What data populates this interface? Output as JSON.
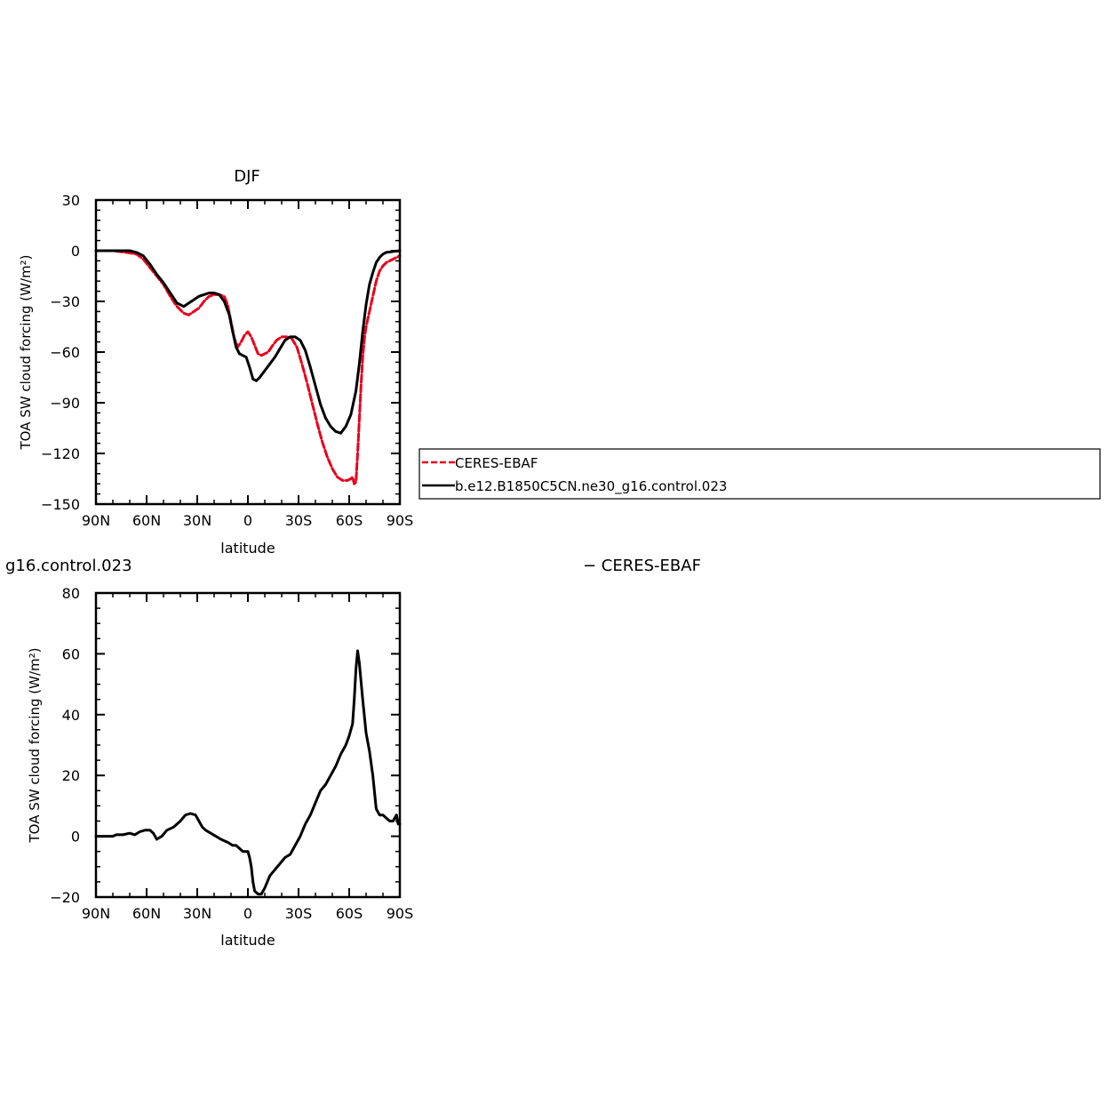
{
  "chart_data": [
    {
      "type": "line",
      "title": "DJF",
      "xlabel": "latitude",
      "ylabel": "TOA SW cloud forcing (W/m²)",
      "xlim": [
        -90,
        90
      ],
      "ylim": [
        -150,
        30
      ],
      "x_ticks": [
        -90,
        -60,
        -30,
        0,
        30,
        60,
        90
      ],
      "x_tick_labels": [
        "90N",
        "60N",
        "30N",
        "0",
        "30S",
        "60S",
        "90S"
      ],
      "y_ticks": [
        30,
        0,
        -30,
        -60,
        -90,
        -120,
        -150
      ],
      "y_tick_labels": [
        "30",
        "0",
        "−30",
        "−60",
        "−90",
        "−120",
        "−150"
      ],
      "legend": "right",
      "series": [
        {
          "name": "CERES-EBAF",
          "color": "#e8001c",
          "dash": true,
          "x": [
            -90,
            -80,
            -72,
            -66,
            -62,
            -58,
            -54,
            -50,
            -46,
            -42,
            -38,
            -35,
            -32,
            -29,
            -26,
            -23,
            -20,
            -17,
            -14,
            -12,
            -10,
            -8,
            -6,
            -4,
            -2,
            0,
            2,
            4,
            6,
            8,
            10,
            12,
            14,
            17,
            20,
            23,
            26,
            29,
            32,
            35,
            38,
            41,
            44,
            47,
            50,
            53,
            56,
            59,
            61,
            62,
            63,
            64,
            65,
            66,
            67,
            68,
            69,
            70,
            72,
            74,
            76,
            78,
            80,
            82,
            84,
            86,
            88,
            90
          ],
          "y": [
            0,
            0,
            -1,
            -2,
            -5,
            -10,
            -15,
            -20,
            -27,
            -33,
            -37,
            -38,
            -36,
            -34,
            -30,
            -27,
            -26,
            -26,
            -27,
            -32,
            -42,
            -52,
            -57,
            -54,
            -50,
            -48,
            -51,
            -56,
            -61,
            -62,
            -61,
            -60,
            -57,
            -53,
            -51,
            -51,
            -52,
            -57,
            -67,
            -78,
            -90,
            -102,
            -113,
            -122,
            -129,
            -134,
            -136,
            -136,
            -135,
            -134,
            -138,
            -137,
            -120,
            -100,
            -80,
            -63,
            -52,
            -45,
            -36,
            -27,
            -18,
            -12,
            -9,
            -7,
            -6,
            -5,
            -4,
            -3
          ]
        },
        {
          "name": "b.e12.B1850C5CN.ne30_g16.control.023",
          "color": "#000000",
          "dash": false,
          "x": [
            -90,
            -80,
            -70,
            -66,
            -62,
            -58,
            -54,
            -50,
            -46,
            -42,
            -38,
            -35,
            -32,
            -29,
            -26,
            -23,
            -20,
            -17,
            -14,
            -11,
            -9,
            -7,
            -5,
            -3,
            -1,
            1,
            3,
            5,
            7,
            10,
            13,
            16,
            19,
            22,
            25,
            28,
            31,
            34,
            37,
            40,
            43,
            46,
            49,
            52,
            55,
            58,
            61,
            64,
            66,
            68,
            70,
            72,
            74,
            76,
            78,
            80,
            82,
            86,
            90
          ],
          "y": [
            0,
            0,
            0,
            -1,
            -3,
            -8,
            -14,
            -19,
            -25,
            -31,
            -33,
            -31,
            -29,
            -27,
            -26,
            -25,
            -25,
            -26,
            -30,
            -38,
            -48,
            -57,
            -61,
            -62,
            -63,
            -69,
            -76,
            -77,
            -75,
            -71,
            -67,
            -63,
            -58,
            -53,
            -51,
            -51,
            -53,
            -59,
            -69,
            -80,
            -91,
            -99,
            -104,
            -107,
            -108,
            -104,
            -97,
            -83,
            -67,
            -48,
            -32,
            -20,
            -13,
            -7,
            -4,
            -2,
            -1,
            -0.5,
            0
          ]
        }
      ]
    },
    {
      "type": "line",
      "title_right": "− CERES-EBAF",
      "title_left": "g16.control.023",
      "xlabel": "latitude",
      "ylabel": "TOA SW cloud forcing (W/m²)",
      "xlim": [
        -90,
        90
      ],
      "ylim": [
        -20,
        80
      ],
      "x_ticks": [
        -90,
        -60,
        -30,
        0,
        30,
        60,
        90
      ],
      "x_tick_labels": [
        "90N",
        "60N",
        "30N",
        "0",
        "30S",
        "60S",
        "90S"
      ],
      "y_ticks": [
        80,
        60,
        40,
        20,
        0,
        -20
      ],
      "y_tick_labels": [
        "80",
        "60",
        "40",
        "20",
        "0",
        "−20"
      ],
      "series": [
        {
          "color": "#000000",
          "dash": false,
          "x": [
            -90,
            -80,
            -78,
            -74,
            -70,
            -67,
            -64,
            -61,
            -58,
            -56,
            -54,
            -51,
            -48,
            -44,
            -40,
            -37,
            -34,
            -31,
            -29,
            -27,
            -25,
            -22,
            -19,
            -16,
            -12,
            -9,
            -7,
            -5,
            -3,
            0,
            1,
            2,
            3,
            4,
            6,
            8,
            10,
            13,
            16,
            19,
            22,
            25,
            28,
            31,
            34,
            37,
            40,
            43,
            46,
            49,
            52,
            55,
            58,
            60,
            62,
            63,
            64,
            65,
            66,
            68,
            70,
            72,
            74,
            76,
            78,
            80,
            82,
            84,
            86,
            87,
            88,
            89,
            90
          ],
          "y": [
            0,
            0,
            0.5,
            0.5,
            1,
            0.5,
            1.5,
            2,
            2,
            1,
            -1,
            0,
            2,
            3,
            5,
            7,
            7.5,
            7,
            5,
            3,
            2,
            1,
            0,
            -1,
            -2,
            -3,
            -3,
            -4,
            -5,
            -5,
            -7,
            -10,
            -15,
            -18,
            -19,
            -19,
            -17,
            -13,
            -11,
            -9,
            -7,
            -6,
            -3,
            0,
            4,
            7,
            11,
            15,
            17,
            20,
            23,
            27,
            30,
            33,
            37,
            45,
            55,
            61,
            57,
            45,
            34,
            28,
            20,
            9,
            7,
            7,
            6,
            5,
            5,
            6,
            7,
            4,
            4
          ]
        }
      ]
    }
  ]
}
